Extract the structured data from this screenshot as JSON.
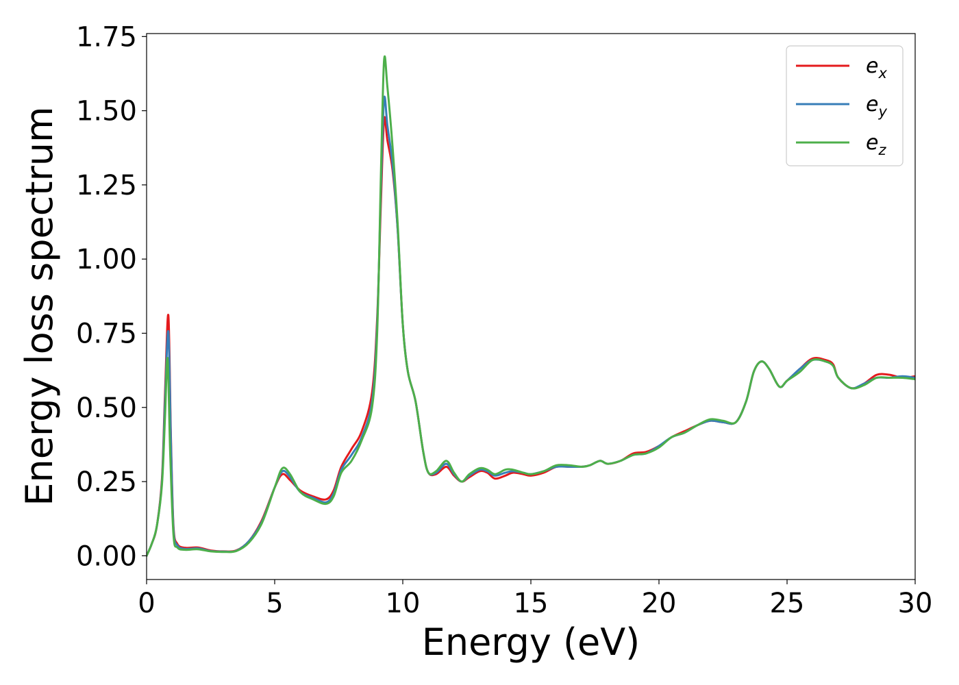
{
  "chart_data": {
    "type": "line",
    "title": "",
    "xlabel": "Energy (eV)",
    "ylabel": "Energy loss spectrum",
    "xlim": [
      0,
      30
    ],
    "ylim": [
      -0.08,
      1.76
    ],
    "xticks": [
      0,
      5,
      10,
      15,
      20,
      25,
      30
    ],
    "xtick_labels": [
      "0",
      "5",
      "10",
      "15",
      "20",
      "25",
      "30"
    ],
    "yticks": [
      0.0,
      0.25,
      0.5,
      0.75,
      1.0,
      1.25,
      1.5,
      1.75
    ],
    "ytick_labels": [
      "0.00",
      "0.25",
      "0.50",
      "0.75",
      "1.00",
      "1.25",
      "1.50",
      "1.75"
    ],
    "grid": false,
    "legend_position": "top-right",
    "series": [
      {
        "name": "e_x",
        "label_base": "e",
        "label_sub": "x",
        "color": "#e41a1c",
        "points": [
          [
            0,
            0
          ],
          [
            0.2,
            0.04
          ],
          [
            0.4,
            0.1
          ],
          [
            0.6,
            0.26
          ],
          [
            0.72,
            0.55
          ],
          [
            0.85,
            0.81
          ],
          [
            0.95,
            0.4
          ],
          [
            1.05,
            0.1
          ],
          [
            1.2,
            0.04
          ],
          [
            1.5,
            0.027
          ],
          [
            2.0,
            0.028
          ],
          [
            2.5,
            0.018
          ],
          [
            3.0,
            0.015
          ],
          [
            3.5,
            0.018
          ],
          [
            4.0,
            0.05
          ],
          [
            4.5,
            0.12
          ],
          [
            5.0,
            0.23
          ],
          [
            5.3,
            0.275
          ],
          [
            5.6,
            0.255
          ],
          [
            6.0,
            0.22
          ],
          [
            6.5,
            0.2
          ],
          [
            7.0,
            0.19
          ],
          [
            7.3,
            0.22
          ],
          [
            7.6,
            0.3
          ],
          [
            8.0,
            0.36
          ],
          [
            8.4,
            0.42
          ],
          [
            8.8,
            0.55
          ],
          [
            9.0,
            0.8
          ],
          [
            9.15,
            1.2
          ],
          [
            9.27,
            1.47
          ],
          [
            9.4,
            1.4
          ],
          [
            9.6,
            1.3
          ],
          [
            9.8,
            1.1
          ],
          [
            10.0,
            0.78
          ],
          [
            10.2,
            0.62
          ],
          [
            10.5,
            0.52
          ],
          [
            10.8,
            0.35
          ],
          [
            11.0,
            0.28
          ],
          [
            11.3,
            0.275
          ],
          [
            11.7,
            0.3
          ],
          [
            12.0,
            0.27
          ],
          [
            12.3,
            0.25
          ],
          [
            12.6,
            0.265
          ],
          [
            13.0,
            0.285
          ],
          [
            13.3,
            0.28
          ],
          [
            13.6,
            0.26
          ],
          [
            14.0,
            0.27
          ],
          [
            14.3,
            0.28
          ],
          [
            14.7,
            0.275
          ],
          [
            15.0,
            0.27
          ],
          [
            15.5,
            0.28
          ],
          [
            16.0,
            0.3
          ],
          [
            16.5,
            0.3
          ],
          [
            17.0,
            0.3
          ],
          [
            17.3,
            0.305
          ],
          [
            17.7,
            0.32
          ],
          [
            18.0,
            0.31
          ],
          [
            18.5,
            0.32
          ],
          [
            19.0,
            0.345
          ],
          [
            19.5,
            0.35
          ],
          [
            20.0,
            0.37
          ],
          [
            20.5,
            0.4
          ],
          [
            21.0,
            0.42
          ],
          [
            21.5,
            0.44
          ],
          [
            22.0,
            0.455
          ],
          [
            22.5,
            0.45
          ],
          [
            23.0,
            0.45
          ],
          [
            23.4,
            0.52
          ],
          [
            23.7,
            0.62
          ],
          [
            24.0,
            0.655
          ],
          [
            24.3,
            0.63
          ],
          [
            24.7,
            0.57
          ],
          [
            25.0,
            0.59
          ],
          [
            25.5,
            0.63
          ],
          [
            26.0,
            0.665
          ],
          [
            26.5,
            0.66
          ],
          [
            26.8,
            0.645
          ],
          [
            27.0,
            0.6
          ],
          [
            27.5,
            0.565
          ],
          [
            28.0,
            0.58
          ],
          [
            28.5,
            0.61
          ],
          [
            29.0,
            0.61
          ],
          [
            29.5,
            0.6
          ],
          [
            30.0,
            0.605
          ]
        ]
      },
      {
        "name": "e_y",
        "label_base": "e",
        "label_sub": "y",
        "color": "#377eb8",
        "points": [
          [
            0,
            0
          ],
          [
            0.2,
            0.04
          ],
          [
            0.4,
            0.1
          ],
          [
            0.6,
            0.25
          ],
          [
            0.72,
            0.52
          ],
          [
            0.85,
            0.755
          ],
          [
            0.95,
            0.38
          ],
          [
            1.05,
            0.09
          ],
          [
            1.2,
            0.035
          ],
          [
            1.5,
            0.023
          ],
          [
            2.0,
            0.025
          ],
          [
            2.5,
            0.016
          ],
          [
            3.0,
            0.014
          ],
          [
            3.5,
            0.017
          ],
          [
            4.0,
            0.05
          ],
          [
            4.5,
            0.115
          ],
          [
            5.0,
            0.23
          ],
          [
            5.3,
            0.285
          ],
          [
            5.6,
            0.265
          ],
          [
            6.0,
            0.215
          ],
          [
            6.5,
            0.195
          ],
          [
            7.0,
            0.18
          ],
          [
            7.3,
            0.21
          ],
          [
            7.6,
            0.29
          ],
          [
            8.0,
            0.34
          ],
          [
            8.4,
            0.4
          ],
          [
            8.8,
            0.52
          ],
          [
            9.0,
            0.78
          ],
          [
            9.15,
            1.25
          ],
          [
            9.27,
            1.54
          ],
          [
            9.4,
            1.45
          ],
          [
            9.6,
            1.32
          ],
          [
            9.8,
            1.1
          ],
          [
            10.0,
            0.78
          ],
          [
            10.2,
            0.62
          ],
          [
            10.5,
            0.52
          ],
          [
            10.8,
            0.35
          ],
          [
            11.0,
            0.28
          ],
          [
            11.3,
            0.28
          ],
          [
            11.7,
            0.31
          ],
          [
            12.0,
            0.275
          ],
          [
            12.3,
            0.25
          ],
          [
            12.6,
            0.27
          ],
          [
            13.0,
            0.29
          ],
          [
            13.3,
            0.285
          ],
          [
            13.6,
            0.27
          ],
          [
            14.0,
            0.28
          ],
          [
            14.3,
            0.285
          ],
          [
            14.7,
            0.28
          ],
          [
            15.0,
            0.275
          ],
          [
            15.5,
            0.285
          ],
          [
            16.0,
            0.3
          ],
          [
            16.5,
            0.3
          ],
          [
            17.0,
            0.3
          ],
          [
            17.3,
            0.305
          ],
          [
            17.7,
            0.32
          ],
          [
            18.0,
            0.31
          ],
          [
            18.5,
            0.32
          ],
          [
            19.0,
            0.34
          ],
          [
            19.5,
            0.345
          ],
          [
            20.0,
            0.37
          ],
          [
            20.5,
            0.4
          ],
          [
            21.0,
            0.415
          ],
          [
            21.5,
            0.44
          ],
          [
            22.0,
            0.455
          ],
          [
            22.5,
            0.45
          ],
          [
            23.0,
            0.45
          ],
          [
            23.4,
            0.52
          ],
          [
            23.7,
            0.62
          ],
          [
            24.0,
            0.655
          ],
          [
            24.3,
            0.63
          ],
          [
            24.7,
            0.57
          ],
          [
            25.0,
            0.59
          ],
          [
            25.5,
            0.63
          ],
          [
            26.0,
            0.66
          ],
          [
            26.5,
            0.655
          ],
          [
            26.8,
            0.64
          ],
          [
            27.0,
            0.6
          ],
          [
            27.5,
            0.565
          ],
          [
            28.0,
            0.58
          ],
          [
            28.5,
            0.6
          ],
          [
            29.0,
            0.6
          ],
          [
            29.5,
            0.605
          ],
          [
            30.0,
            0.6
          ]
        ]
      },
      {
        "name": "e_z",
        "label_base": "e",
        "label_sub": "z",
        "color": "#4daf4a",
        "points": [
          [
            0,
            0
          ],
          [
            0.2,
            0.04
          ],
          [
            0.4,
            0.1
          ],
          [
            0.6,
            0.24
          ],
          [
            0.72,
            0.47
          ],
          [
            0.82,
            0.665
          ],
          [
            0.92,
            0.35
          ],
          [
            1.05,
            0.07
          ],
          [
            1.2,
            0.028
          ],
          [
            1.5,
            0.02
          ],
          [
            2.0,
            0.022
          ],
          [
            2.5,
            0.015
          ],
          [
            3.0,
            0.013
          ],
          [
            3.5,
            0.016
          ],
          [
            4.0,
            0.045
          ],
          [
            4.5,
            0.11
          ],
          [
            5.0,
            0.23
          ],
          [
            5.3,
            0.295
          ],
          [
            5.6,
            0.275
          ],
          [
            6.0,
            0.215
          ],
          [
            6.5,
            0.19
          ],
          [
            7.0,
            0.175
          ],
          [
            7.3,
            0.2
          ],
          [
            7.6,
            0.28
          ],
          [
            8.0,
            0.32
          ],
          [
            8.4,
            0.39
          ],
          [
            8.8,
            0.5
          ],
          [
            9.0,
            0.75
          ],
          [
            9.15,
            1.3
          ],
          [
            9.27,
            1.67
          ],
          [
            9.4,
            1.58
          ],
          [
            9.6,
            1.38
          ],
          [
            9.8,
            1.12
          ],
          [
            10.0,
            0.78
          ],
          [
            10.2,
            0.62
          ],
          [
            10.5,
            0.52
          ],
          [
            10.8,
            0.35
          ],
          [
            11.0,
            0.28
          ],
          [
            11.3,
            0.285
          ],
          [
            11.7,
            0.32
          ],
          [
            12.0,
            0.28
          ],
          [
            12.3,
            0.25
          ],
          [
            12.6,
            0.275
          ],
          [
            13.0,
            0.295
          ],
          [
            13.3,
            0.29
          ],
          [
            13.6,
            0.275
          ],
          [
            14.0,
            0.29
          ],
          [
            14.3,
            0.29
          ],
          [
            14.7,
            0.28
          ],
          [
            15.0,
            0.275
          ],
          [
            15.5,
            0.285
          ],
          [
            16.0,
            0.305
          ],
          [
            16.5,
            0.305
          ],
          [
            17.0,
            0.3
          ],
          [
            17.3,
            0.305
          ],
          [
            17.7,
            0.32
          ],
          [
            18.0,
            0.31
          ],
          [
            18.5,
            0.32
          ],
          [
            19.0,
            0.34
          ],
          [
            19.5,
            0.345
          ],
          [
            20.0,
            0.365
          ],
          [
            20.5,
            0.4
          ],
          [
            21.0,
            0.415
          ],
          [
            21.5,
            0.44
          ],
          [
            22.0,
            0.46
          ],
          [
            22.5,
            0.455
          ],
          [
            23.0,
            0.45
          ],
          [
            23.4,
            0.52
          ],
          [
            23.7,
            0.62
          ],
          [
            24.0,
            0.655
          ],
          [
            24.3,
            0.63
          ],
          [
            24.7,
            0.57
          ],
          [
            25.0,
            0.59
          ],
          [
            25.5,
            0.62
          ],
          [
            26.0,
            0.66
          ],
          [
            26.5,
            0.655
          ],
          [
            26.8,
            0.64
          ],
          [
            27.0,
            0.6
          ],
          [
            27.5,
            0.565
          ],
          [
            28.0,
            0.575
          ],
          [
            28.5,
            0.6
          ],
          [
            29.0,
            0.6
          ],
          [
            29.5,
            0.6
          ],
          [
            30.0,
            0.595
          ]
        ]
      }
    ]
  }
}
